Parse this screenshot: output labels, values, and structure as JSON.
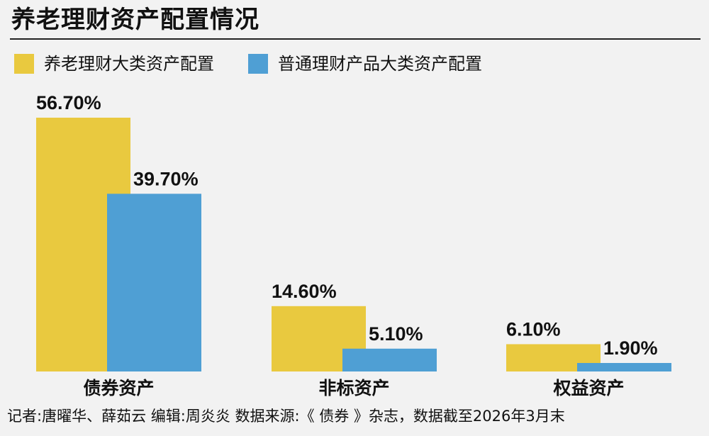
{
  "title": "养老理财资产配置情况",
  "source": "记者:唐曜华、薛茹云  编辑:周炎炎  数据来源:《 债券 》杂志，数据截至2026年3月末",
  "chart_data": {
    "type": "bar",
    "categories": [
      "债券资产",
      "非标资产",
      "权益资产"
    ],
    "series": [
      {
        "name": "养老理财大类资产配置",
        "color": "#e9c93f",
        "values": [
          56.7,
          14.6,
          6.1
        ],
        "labels": [
          "56.70%",
          "14.60%",
          "6.10%"
        ]
      },
      {
        "name": "普通理财产品大类资产配置",
        "color": "#4f9fd4",
        "values": [
          39.7,
          5.1,
          1.9
        ],
        "labels": [
          "39.70%",
          "5.10%",
          "1.90%"
        ]
      }
    ],
    "ylim": [
      0,
      62
    ],
    "grid": false,
    "legend_position": "top-left"
  }
}
